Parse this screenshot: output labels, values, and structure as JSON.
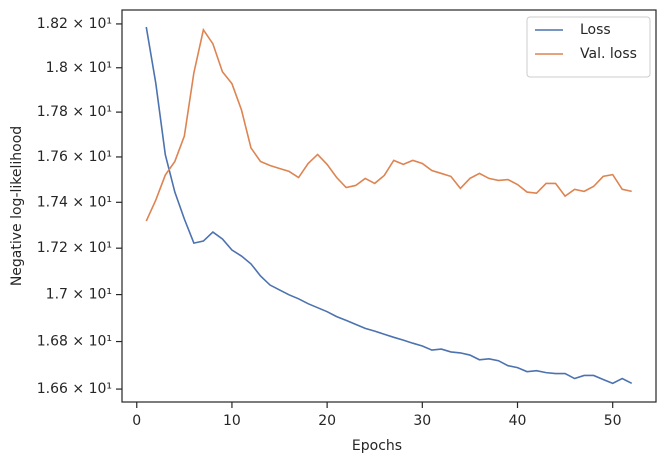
{
  "chart_data": {
    "type": "line",
    "xlabel": "Epochs",
    "ylabel": "Negative log-likelihood",
    "x": [
      1,
      2,
      3,
      4,
      5,
      6,
      7,
      8,
      9,
      10,
      11,
      12,
      13,
      14,
      15,
      16,
      17,
      18,
      19,
      20,
      21,
      22,
      23,
      24,
      25,
      26,
      27,
      28,
      29,
      30,
      31,
      32,
      33,
      34,
      35,
      36,
      37,
      38,
      39,
      40,
      41,
      42,
      43,
      44,
      45,
      46,
      47,
      48,
      49,
      50,
      51,
      52
    ],
    "series": [
      {
        "name": "Loss",
        "color": "#4c72b0",
        "values": [
          18.186,
          17.93,
          17.61,
          17.445,
          17.327,
          17.222,
          17.231,
          17.27,
          17.24,
          17.192,
          17.166,
          17.132,
          17.08,
          17.041,
          17.02,
          16.999,
          16.982,
          16.961,
          16.944,
          16.927,
          16.906,
          16.89,
          16.873,
          16.856,
          16.844,
          16.831,
          16.818,
          16.806,
          16.793,
          16.781,
          16.764,
          16.768,
          16.756,
          16.752,
          16.743,
          16.723,
          16.727,
          16.719,
          16.698,
          16.69,
          16.673,
          16.677,
          16.669,
          16.665,
          16.665,
          16.644,
          16.657,
          16.657,
          16.64,
          16.624,
          16.644,
          16.624
        ]
      },
      {
        "name": "Val. loss",
        "color": "#dd8452",
        "values": [
          17.318,
          17.41,
          17.52,
          17.58,
          17.693,
          17.977,
          18.173,
          18.109,
          17.982,
          17.928,
          17.81,
          17.64,
          17.58,
          17.562,
          17.549,
          17.536,
          17.509,
          17.571,
          17.611,
          17.567,
          17.509,
          17.465,
          17.474,
          17.505,
          17.483,
          17.518,
          17.585,
          17.567,
          17.585,
          17.571,
          17.54,
          17.527,
          17.514,
          17.461,
          17.505,
          17.527,
          17.505,
          17.496,
          17.5,
          17.478,
          17.445,
          17.44,
          17.483,
          17.483,
          17.427,
          17.457,
          17.448,
          17.47,
          17.514,
          17.522,
          17.457,
          17.448
        ]
      }
    ],
    "xlim": [
      -1.55,
      54.55
    ],
    "xticks": [
      0,
      10,
      20,
      30,
      40,
      50
    ],
    "ylim": [
      16.546,
      18.264
    ],
    "yscale": "log",
    "yticks": [
      {
        "value": 16.6,
        "label": "1.66 × 10¹"
      },
      {
        "value": 16.8,
        "label": "1.68 × 10¹"
      },
      {
        "value": 17.0,
        "label": "1.7 × 10¹"
      },
      {
        "value": 17.2,
        "label": "1.72 × 10¹"
      },
      {
        "value": 17.4,
        "label": "1.74 × 10¹"
      },
      {
        "value": 17.6,
        "label": "1.76 × 10¹"
      },
      {
        "value": 17.8,
        "label": "1.78 × 10¹"
      },
      {
        "value": 18.0,
        "label": "1.8 × 10¹"
      },
      {
        "value": 18.2,
        "label": "1.82 × 10¹"
      }
    ],
    "legend": "upper right"
  }
}
